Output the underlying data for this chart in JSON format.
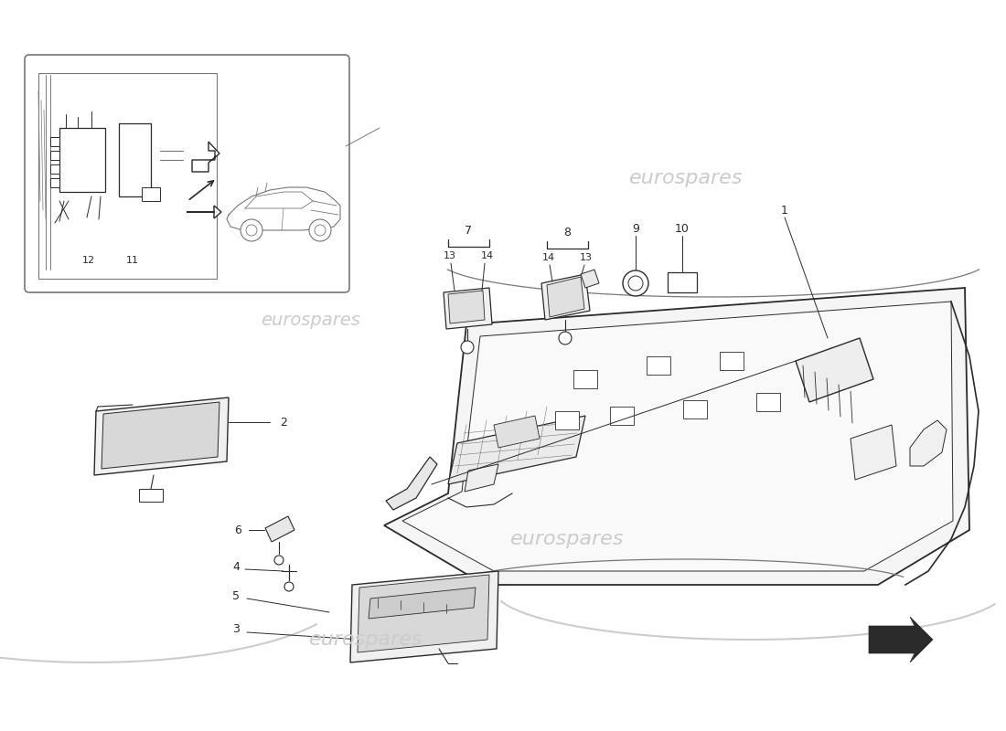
{
  "bg_color": "#ffffff",
  "line_color": "#2a2a2a",
  "light_line_color": "#777777",
  "watermark_color": "#cccccc",
  "watermark_text": "eurospares"
}
